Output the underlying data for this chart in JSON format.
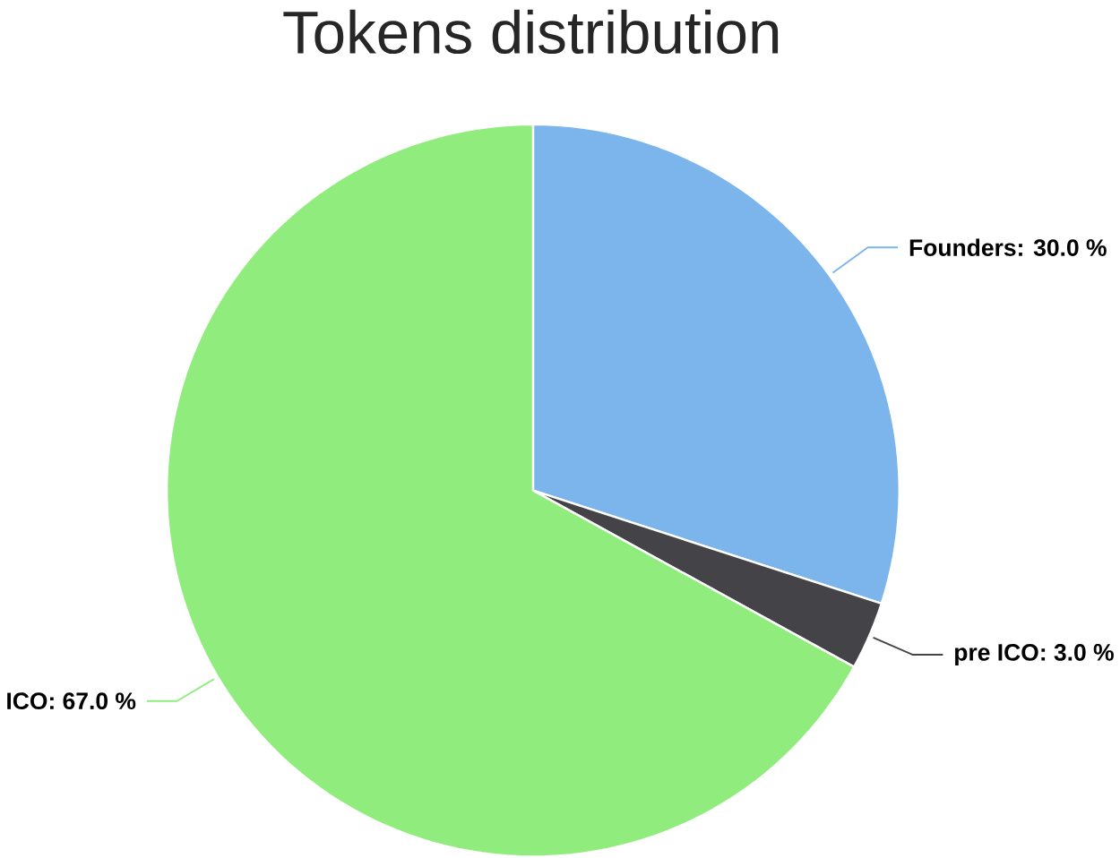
{
  "chart_data": {
    "type": "pie",
    "title": "Tokens distribution",
    "categories": [
      "Founders",
      "pre ICO",
      "ICO"
    ],
    "values": [
      30,
      3,
      67
    ],
    "value_labels": [
      ": 30.0 %",
      ": 3.0 %",
      ": 67.0 %"
    ],
    "colors": [
      "#7cb5ec",
      "#434348",
      "#90ed7d"
    ]
  }
}
